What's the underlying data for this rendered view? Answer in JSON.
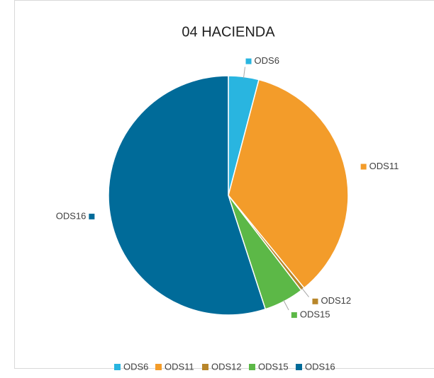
{
  "chart_data": {
    "type": "pie",
    "title": "04 HACIENDA",
    "categories": [
      "ODS6",
      "ODS11",
      "ODS12",
      "ODS15",
      "ODS16"
    ],
    "values": [
      4.1,
      35,
      0.5,
      5.4,
      55
    ],
    "colors": [
      "#29b5e0",
      "#f39c2a",
      "#b8862a",
      "#5cb847",
      "#006b99"
    ],
    "legend": "bottom"
  }
}
